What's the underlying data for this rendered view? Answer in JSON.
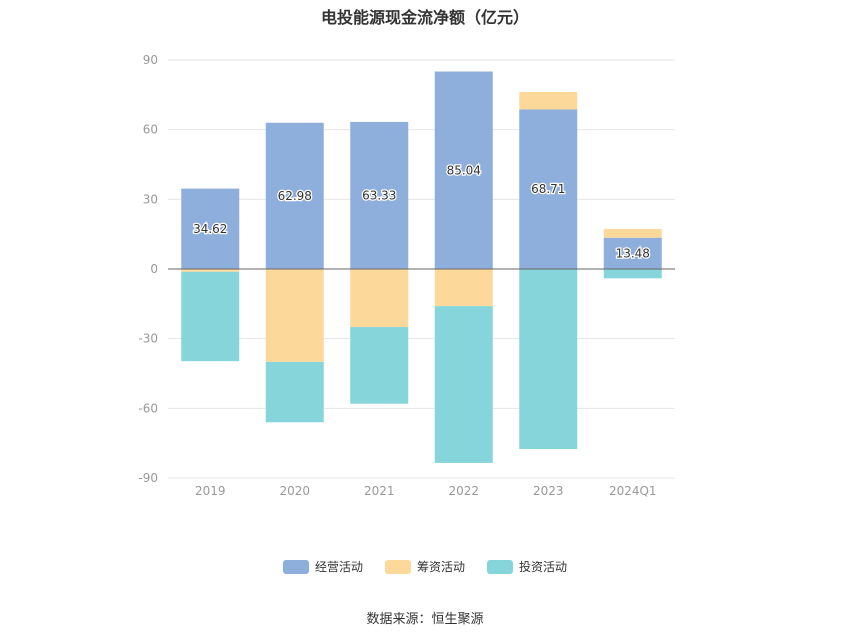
{
  "chart_data": {
    "type": "bar",
    "stacked": true,
    "title": "电投能源现金流净额（亿元）",
    "categories": [
      "2019",
      "2020",
      "2021",
      "2022",
      "2023",
      "2024Q1"
    ],
    "ylim": [
      -90,
      90
    ],
    "yticks": [
      90,
      60,
      30,
      0,
      -30,
      -60,
      -90
    ],
    "series": [
      {
        "name": "经营活动",
        "color": "#8eaedc",
        "values": [
          34.62,
          62.98,
          63.33,
          85.04,
          68.71,
          13.48
        ],
        "labels": [
          "34.62",
          "62.98",
          "63.33",
          "85.04",
          "68.71",
          "13.48"
        ]
      },
      {
        "name": "筹资活动",
        "color": "#fdd89b",
        "values": [
          -1.2,
          -40,
          -25,
          -16,
          7.5,
          3.8
        ]
      },
      {
        "name": "投资活动",
        "color": "#86d5da",
        "values": [
          -38.5,
          -26,
          -33,
          -67.5,
          -77.5,
          -4
        ]
      }
    ],
    "grid": true,
    "legend_position": "bottom"
  },
  "footer": {
    "source": "数据来源：恒生聚源"
  }
}
